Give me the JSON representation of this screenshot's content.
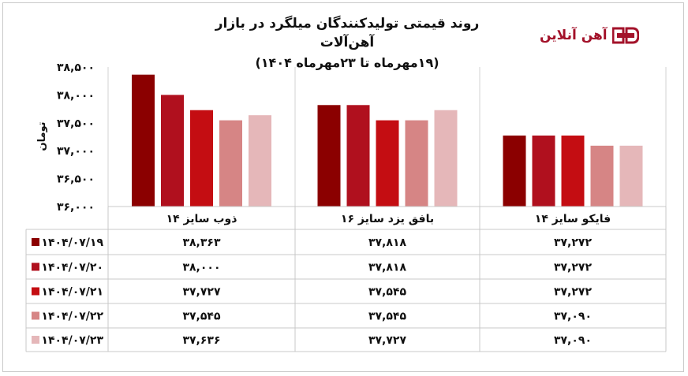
{
  "brand": {
    "logo_text": "آهن آنلاین",
    "logo_icon": "ahan-online-logo-icon"
  },
  "chart_data": {
    "type": "bar",
    "title": "روند قیمتی تولیدکنندگان میلگرد در بازار آهن‌آلات",
    "subtitle": "(۱۹مهرماه تا ۲۳مهرماه ۱۴۰۴)",
    "ylabel": "تومان",
    "xlabel": "",
    "ylim": [
      36000,
      38500
    ],
    "yticks": [
      36000,
      36500,
      37000,
      37500,
      38000,
      38500
    ],
    "ytick_labels": [
      "۳۶,۰۰۰",
      "۳۶,۵۰۰",
      "۳۷,۰۰۰",
      "۳۷,۵۰۰",
      "۳۸,۰۰۰",
      "۳۸,۵۰۰"
    ],
    "grid": true,
    "legend": "bottom-left data table",
    "categories": [
      "ذوب سایز ۱۴",
      "بافق یزد سایز ۱۶",
      "فایکو سایز ۱۴"
    ],
    "series": [
      {
        "name": "۱۴۰۴/۰۷/۱۹",
        "color": "#8b0000",
        "values": [
          38363,
          37818,
          37272
        ],
        "labels": [
          "۳۸,۳۶۳",
          "۳۷,۸۱۸",
          "۳۷,۲۷۲"
        ]
      },
      {
        "name": "۱۴۰۴/۰۷/۲۰",
        "color": "#b0101e",
        "values": [
          38000,
          37818,
          37272
        ],
        "labels": [
          "۳۸,۰۰۰",
          "۳۷,۸۱۸",
          "۳۷,۲۷۲"
        ]
      },
      {
        "name": "۱۴۰۴/۰۷/۲۱",
        "color": "#c40d12",
        "values": [
          37727,
          37545,
          37272
        ],
        "labels": [
          "۳۷,۷۲۷",
          "۳۷,۵۴۵",
          "۳۷,۲۷۲"
        ]
      },
      {
        "name": "۱۴۰۴/۰۷/۲۲",
        "color": "#d68585",
        "values": [
          37545,
          37545,
          37090
        ],
        "labels": [
          "۳۷,۵۴۵",
          "۳۷,۵۴۵",
          "۳۷,۰۹۰"
        ]
      },
      {
        "name": "۱۴۰۴/۰۷/۲۳",
        "color": "#e5b7b9",
        "values": [
          37636,
          37727,
          37090
        ],
        "labels": [
          "۳۷,۶۳۶",
          "۳۷,۷۲۷",
          "۳۷,۰۹۰"
        ]
      }
    ]
  }
}
